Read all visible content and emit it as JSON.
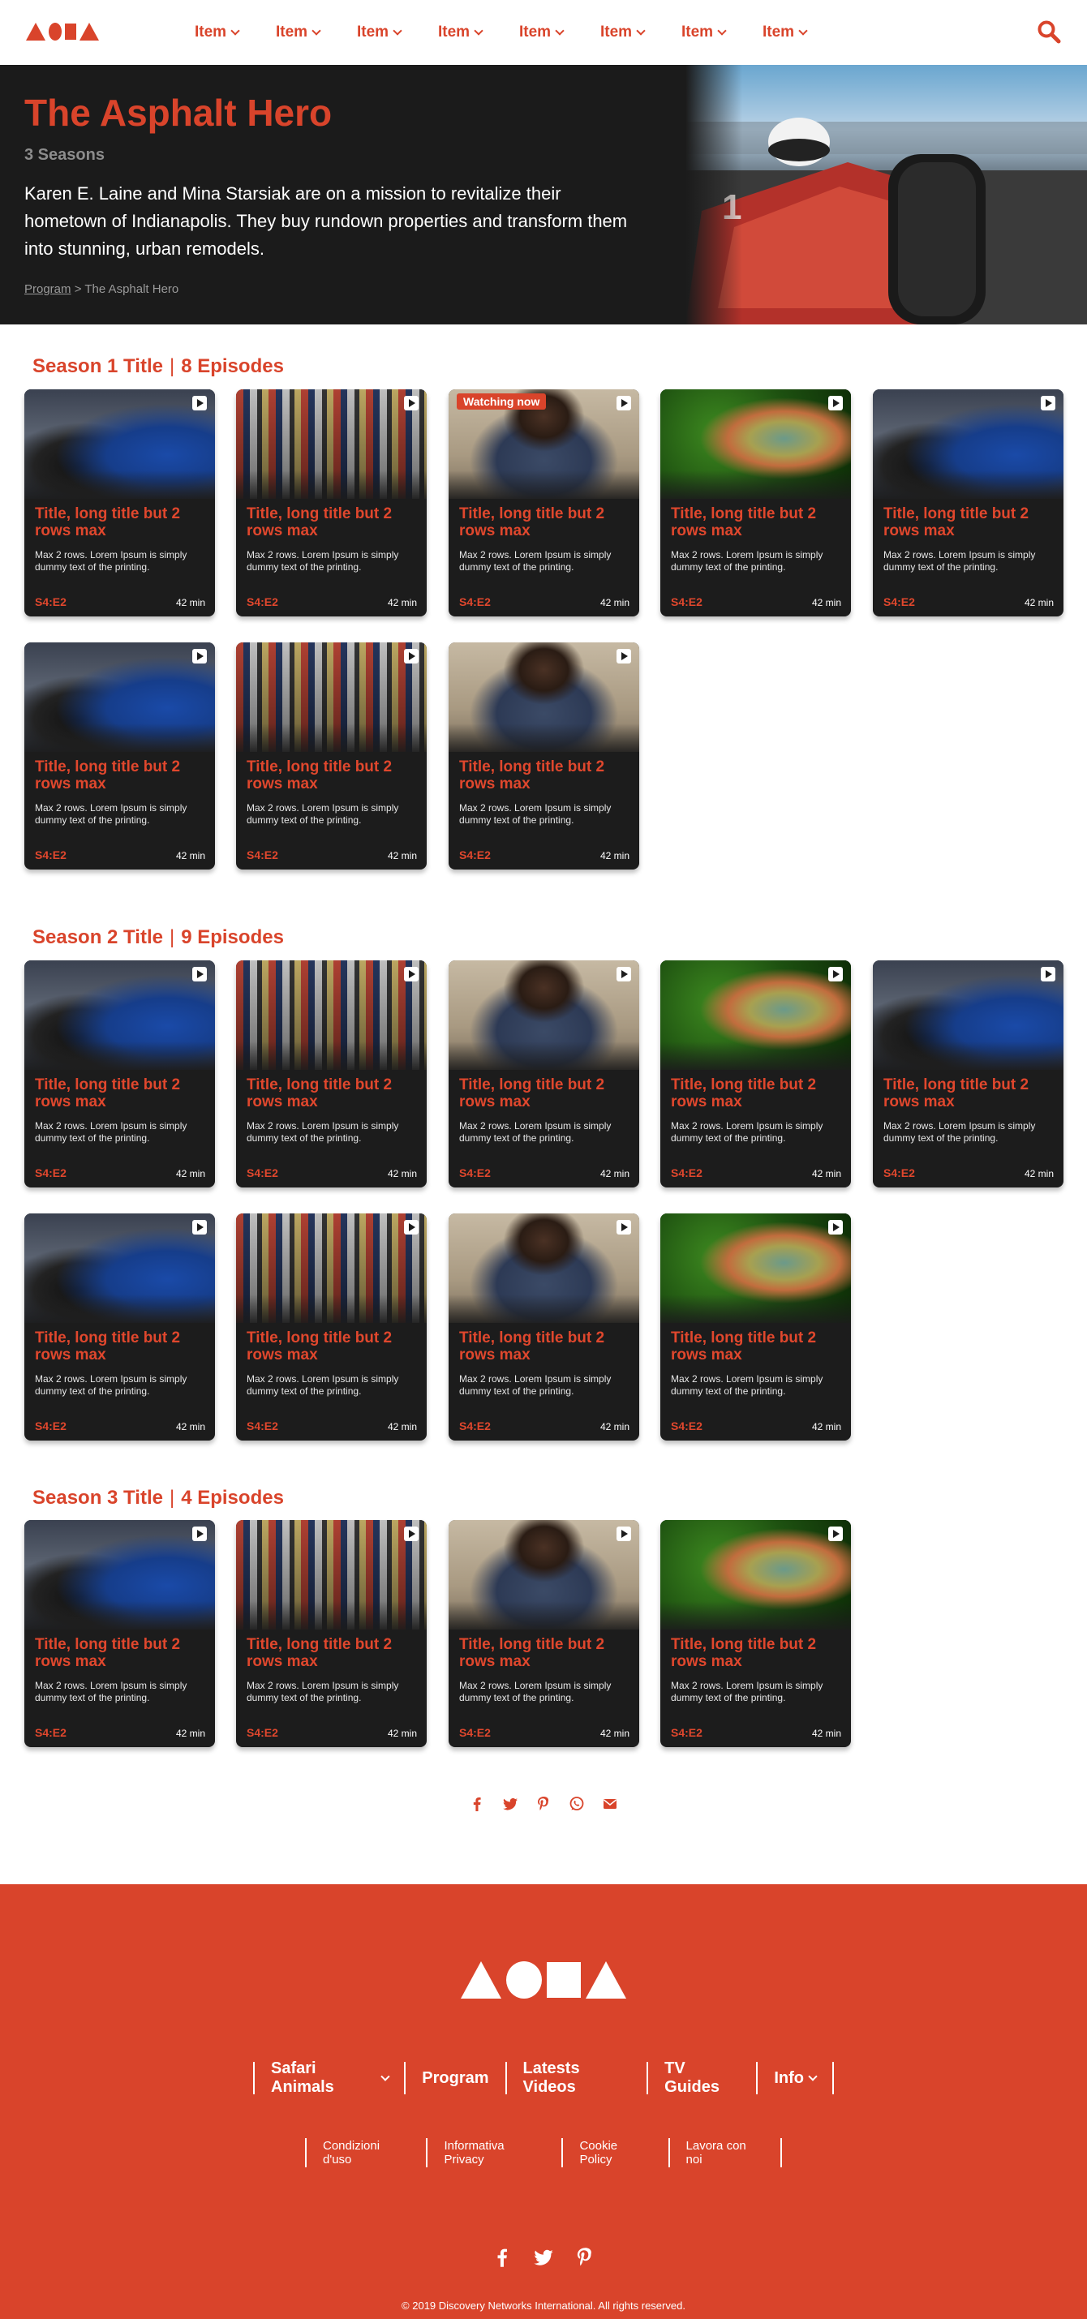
{
  "header": {
    "nav_items": [
      "Item",
      "Item",
      "Item",
      "Item",
      "Item",
      "Item",
      "Item",
      "Item"
    ],
    "search_icon": "search-icon",
    "accent_color": "#d9442b"
  },
  "hero": {
    "title": "The Asphalt Hero",
    "seasons": "3 Seasons",
    "description": "Karen E. Laine and Mina Starsiak are on a mission to revitalize their hometown of Indianapolis. They buy rundown properties and transform them into stunning, urban remodels.",
    "breadcrumb_link": "Program",
    "breadcrumb_sep": ">",
    "breadcrumb_current": "The Asphalt Hero",
    "background_color": "#1b1b1b"
  },
  "card_text": {
    "title": "Title, long title but 2 rows max",
    "desc": "Max 2 rows. Lorem Ipsum is simply dummy text of the printing.",
    "episode": "S4:E2",
    "duration": "42 min",
    "watching_badge": "Watching now"
  },
  "seasons": [
    {
      "title": "Season 1 Title",
      "sep": "|",
      "episodes": "8 Episodes",
      "thumbs": [
        "car",
        "crowd",
        "chef",
        "chameleon",
        "car",
        "car",
        "crowd",
        "chef"
      ]
    },
    {
      "title": "Season 2 Title",
      "sep": "|",
      "episodes": "9 Episodes",
      "thumbs": [
        "car",
        "crowd",
        "chef",
        "chameleon",
        "car",
        "car",
        "crowd",
        "chef",
        "chameleon"
      ]
    },
    {
      "title": "Season 3 Title",
      "sep": "|",
      "episodes": "4 Episodes",
      "thumbs": [
        "car",
        "crowd",
        "chef",
        "chameleon"
      ]
    }
  ],
  "share_icons": [
    "facebook-icon",
    "twitter-icon",
    "pinterest-icon",
    "whatsapp-icon",
    "email-icon"
  ],
  "footer": {
    "nav": [
      "Safari Animals",
      "Program",
      "Latests Videos",
      "TV Guides",
      "Info"
    ],
    "legal": [
      "Condizioni d'uso",
      "Informativa Privacy",
      "Cookie Policy",
      "Lavora con noi"
    ],
    "social": [
      "facebook-icon",
      "twitter-icon",
      "pinterest-icon"
    ],
    "copyright": "© 2019 Discovery Networks International. All rights reserved.",
    "background_color": "#d9442b"
  }
}
